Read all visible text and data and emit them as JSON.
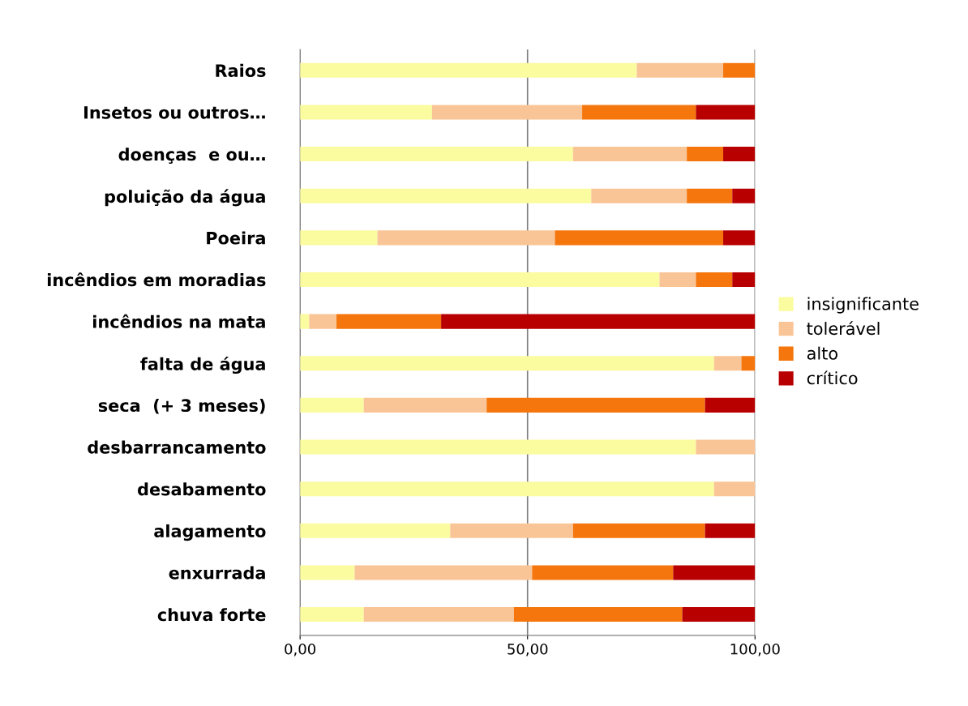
{
  "chart_data": {
    "type": "bar",
    "orientation": "horizontal",
    "stacked": true,
    "categories": [
      "Raios",
      "Insetos ou outros…",
      "doenças  e ou…",
      "poluição da água",
      "Poeira",
      "incêndios em moradias",
      "incêndios na mata",
      "falta de água",
      "seca  (+ 3 meses)",
      "desbarrancamento",
      "desabamento",
      "alagamento",
      "enxurrada",
      "chuva forte"
    ],
    "series": [
      {
        "name": "insignificante",
        "color": "#fbfba0",
        "values": [
          74,
          29,
          60,
          64,
          17,
          79,
          2,
          91,
          14,
          87,
          91,
          33,
          12,
          14
        ]
      },
      {
        "name": "tolerável",
        "color": "#fac596",
        "values": [
          19,
          33,
          25,
          21,
          39,
          8,
          6,
          6,
          27,
          13,
          9,
          27,
          39,
          33
        ]
      },
      {
        "name": "alto",
        "color": "#f5760c",
        "values": [
          7,
          25,
          8,
          10,
          37,
          8,
          23,
          3,
          48,
          0,
          0,
          29,
          31,
          37
        ]
      },
      {
        "name": "crítico",
        "color": "#b80000",
        "values": [
          0,
          13,
          7,
          5,
          7,
          5,
          69,
          0,
          11,
          0,
          0,
          11,
          18,
          16
        ]
      }
    ],
    "xlim": [
      0,
      100
    ],
    "xticks": [
      {
        "value": 0,
        "label": "0,00"
      },
      {
        "value": 50,
        "label": "50,00"
      },
      {
        "value": 100,
        "label": "100,00"
      }
    ],
    "grid": "x",
    "legend": "right"
  }
}
